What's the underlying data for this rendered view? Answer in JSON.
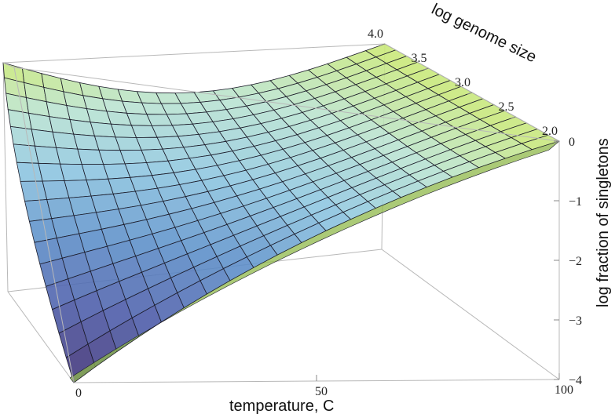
{
  "chart_data": {
    "type": "surface3d",
    "title": "",
    "x_axis": {
      "label": "temperature, C",
      "range": [
        0,
        100
      ],
      "ticks": [
        0,
        50,
        100
      ],
      "tick_labels": [
        "0",
        "50",
        "100"
      ]
    },
    "y_axis": {
      "label": "log genome size",
      "range": [
        2.0,
        4.0
      ],
      "ticks": [
        2.0,
        2.5,
        3.0,
        3.5,
        4.0
      ],
      "tick_labels": [
        "2.0",
        "2.5",
        "3.0",
        "3.5",
        "4.0"
      ]
    },
    "z_axis": {
      "label": "log fraction of singletons",
      "range": [
        -4,
        0
      ],
      "ticks": [
        0,
        -1,
        -2,
        -3,
        -4
      ],
      "tick_labels": [
        "0",
        "−1",
        "−2",
        "−3",
        "−4"
      ]
    },
    "surface": {
      "grid_x": [
        0,
        10,
        20,
        30,
        40,
        50,
        60,
        70,
        80,
        90,
        100
      ],
      "grid_y": [
        2.0,
        2.5,
        3.0,
        3.5,
        4.0
      ],
      "z_corners": {
        "t0_g2": -4.0,
        "t100_g2": 0.0,
        "t0_g4": 0.0,
        "t100_g4": 0.0
      },
      "colormap": [
        "#3b2a6e",
        "#4a5aa8",
        "#5b8fc9",
        "#8cc5e0",
        "#b9e3d0",
        "#c9e870"
      ],
      "underside_color": "#8fb84a",
      "mesh_lines": true,
      "clipped_faces_color": "#dcdcdc"
    },
    "box": true,
    "grid": false
  }
}
